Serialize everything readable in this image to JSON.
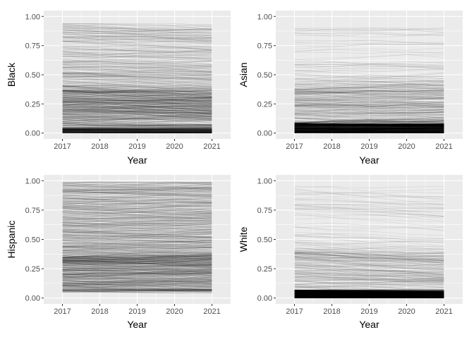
{
  "figure": {
    "colors": {
      "panel_background": "#ebebeb",
      "grid": "#ffffff",
      "line": "#000000",
      "tick_text": "#4d4d4d",
      "title_text": "#000000"
    }
  },
  "chart_data": [
    {
      "type": "line",
      "panel": "top-left",
      "xlabel": "Year",
      "ylabel": "Black",
      "x": [
        2017,
        2018,
        2019,
        2020,
        2021
      ],
      "x_ticks": [
        "2017",
        "2018",
        "2019",
        "2020",
        "2021"
      ],
      "y_ticks": [
        "0.00",
        "0.25",
        "0.50",
        "0.75",
        "1.00"
      ],
      "xlim": [
        2016.5,
        2021.5
      ],
      "ylim": [
        -0.05,
        1.05
      ],
      "grid": true,
      "legend": "none",
      "line_count": 900,
      "line_alpha": 0.1,
      "distribution": {
        "description": "many overlapping translucent lines, dense near 0.0–0.35, spread up to ~0.94",
        "pattern": "black",
        "max_share": 0.94
      }
    },
    {
      "type": "line",
      "panel": "top-right",
      "xlabel": "Year",
      "ylabel": "Asian",
      "x": [
        2017,
        2018,
        2019,
        2020,
        2021
      ],
      "x_ticks": [
        "2017",
        "2018",
        "2019",
        "2020",
        "2021"
      ],
      "y_ticks": [
        "0.00",
        "0.25",
        "0.50",
        "0.75",
        "1.00"
      ],
      "xlim": [
        2016.5,
        2021.5
      ],
      "ylim": [
        -0.05,
        1.05
      ],
      "grid": true,
      "legend": "none",
      "line_count": 900,
      "line_alpha": 0.1,
      "distribution": {
        "description": "most lines very low (0.0–0.10), sparse lines up to ~0.9",
        "pattern": "asian",
        "max_share": 0.9
      }
    },
    {
      "type": "line",
      "panel": "bottom-left",
      "xlabel": "Year",
      "ylabel": "Hispanic",
      "x": [
        2017,
        2018,
        2019,
        2020,
        2021
      ],
      "x_ticks": [
        "2017",
        "2018",
        "2019",
        "2020",
        "2021"
      ],
      "y_ticks": [
        "0.00",
        "0.25",
        "0.50",
        "0.75",
        "1.00"
      ],
      "xlim": [
        2016.5,
        2021.5
      ],
      "ylim": [
        -0.05,
        1.05
      ],
      "grid": true,
      "legend": "none",
      "line_count": 900,
      "line_alpha": 0.1,
      "distribution": {
        "description": "lines spread across ~0.05–0.99, densest 0.1–0.3",
        "pattern": "hispanic",
        "max_share": 0.99
      }
    },
    {
      "type": "line",
      "panel": "bottom-right",
      "xlabel": "Year",
      "ylabel": "White",
      "x": [
        2017,
        2018,
        2019,
        2020,
        2021
      ],
      "x_ticks": [
        "2017",
        "2018",
        "2019",
        "2020",
        "2021"
      ],
      "y_ticks": [
        "0.00",
        "0.25",
        "0.50",
        "0.75",
        "1.00"
      ],
      "xlim": [
        2016.5,
        2021.5
      ],
      "ylim": [
        -0.05,
        1.05
      ],
      "grid": true,
      "legend": "none",
      "line_count": 900,
      "line_alpha": 0.1,
      "distribution": {
        "description": "very dense near 0.0–0.08, sparse lines up to ~0.95, slight downward drift",
        "pattern": "white",
        "max_share": 0.95
      }
    }
  ]
}
